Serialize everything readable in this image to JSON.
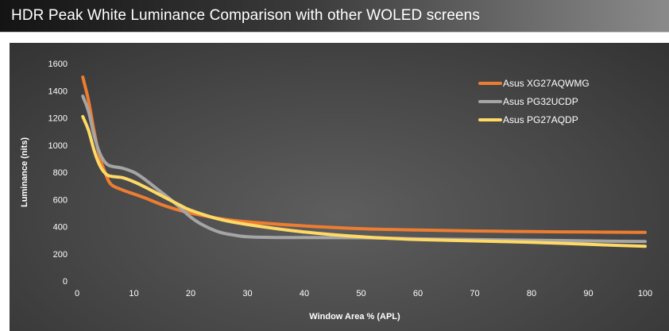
{
  "page": {
    "title": "HDR Peak White Luminance Comparison with other WOLED screens"
  },
  "chart_data": {
    "type": "line",
    "title": "",
    "xlabel": "Window Area % (APL)",
    "ylabel": "Luminance (nits)",
    "xlim": [
      0,
      100
    ],
    "ylim": [
      0,
      1600
    ],
    "x_ticks": [
      "0",
      "10",
      "20",
      "30",
      "40",
      "50",
      "60",
      "70",
      "80",
      "90",
      "100"
    ],
    "y_ticks": [
      "0",
      "200",
      "400",
      "600",
      "800",
      "1000",
      "1200",
      "1400",
      "1600"
    ],
    "grid": false,
    "legend_position": "top-right",
    "series": [
      {
        "name": "Asus XG27AQWMG",
        "color": "#ed7d31",
        "x": [
          1,
          2,
          3,
          4,
          5,
          6,
          8,
          10,
          12,
          15,
          18,
          20,
          25,
          30,
          40,
          50,
          60,
          70,
          80,
          90,
          100
        ],
        "y": [
          1500,
          1330,
          1100,
          910,
          790,
          710,
          670,
          640,
          610,
          560,
          520,
          500,
          460,
          435,
          405,
          385,
          375,
          368,
          363,
          360,
          358
        ]
      },
      {
        "name": "Asus PG32UCDP",
        "color": "#a5a5a5",
        "x": [
          1,
          2,
          3,
          4,
          5,
          6,
          8,
          10,
          11,
          12,
          14,
          16,
          18,
          20,
          22,
          25,
          28,
          30,
          35,
          40,
          50,
          60,
          70,
          80,
          90,
          100
        ],
        "y": [
          1360,
          1250,
          1070,
          940,
          870,
          845,
          830,
          800,
          775,
          745,
          680,
          615,
          545,
          470,
          415,
          360,
          335,
          325,
          320,
          320,
          318,
          310,
          305,
          300,
          295,
          290
        ]
      },
      {
        "name": "Asus PG27AQDP",
        "color": "#ffd966",
        "x": [
          1,
          2,
          3,
          4,
          5,
          6,
          8,
          10,
          12,
          15,
          18,
          20,
          25,
          30,
          40,
          50,
          60,
          70,
          80,
          90,
          100
        ],
        "y": [
          1210,
          1110,
          960,
          850,
          790,
          770,
          760,
          730,
          690,
          625,
          560,
          520,
          455,
          415,
          360,
          325,
          305,
          295,
          285,
          270,
          255
        ]
      }
    ]
  }
}
